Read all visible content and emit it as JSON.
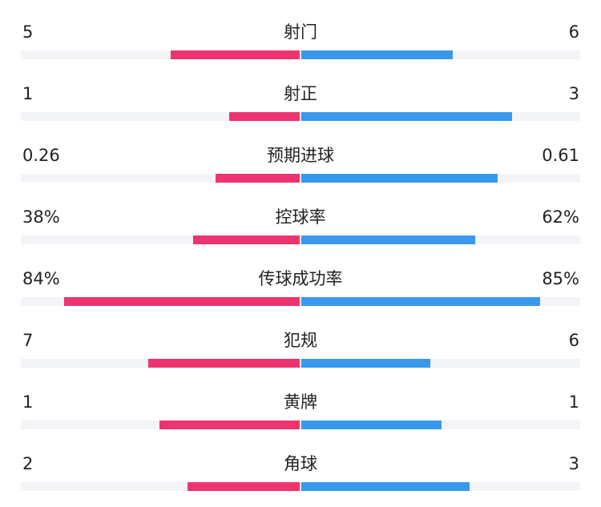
{
  "colors": {
    "home": "#ee3470",
    "away": "#3a98ec",
    "track": "#f2f4f8"
  },
  "stats": [
    {
      "label": "射门",
      "home": "5",
      "away": "6",
      "home_fill": 0.46,
      "away_fill": 0.54
    },
    {
      "label": "射正",
      "home": "1",
      "away": "3",
      "home_fill": 0.25,
      "away_fill": 0.75
    },
    {
      "label": "预期进球",
      "home": "0.26",
      "away": "0.61",
      "home_fill": 0.3,
      "away_fill": 0.7
    },
    {
      "label": "控球率",
      "home": "38%",
      "away": "62%",
      "home_fill": 0.38,
      "away_fill": 0.62
    },
    {
      "label": "传球成功率",
      "home": "84%",
      "away": "85%",
      "home_fill": 0.84,
      "away_fill": 0.85
    },
    {
      "label": "犯规",
      "home": "7",
      "away": "6",
      "home_fill": 0.54,
      "away_fill": 0.46
    },
    {
      "label": "黄牌",
      "home": "1",
      "away": "1",
      "home_fill": 0.5,
      "away_fill": 0.5
    },
    {
      "label": "角球",
      "home": "2",
      "away": "3",
      "home_fill": 0.4,
      "away_fill": 0.6
    }
  ]
}
